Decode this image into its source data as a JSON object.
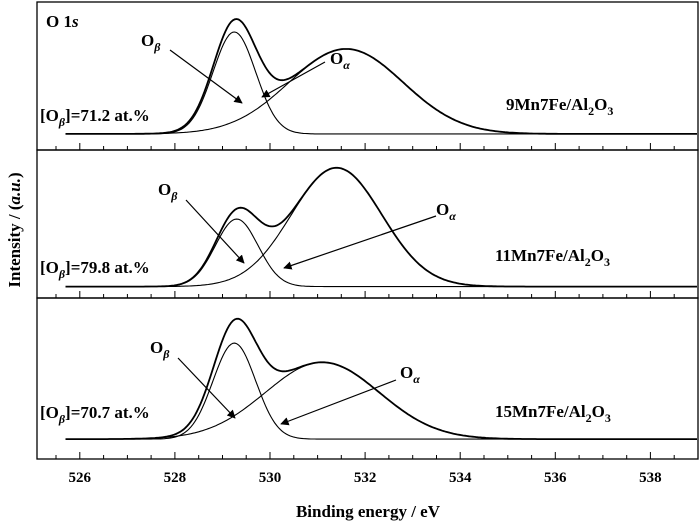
{
  "chart_data": {
    "type": "line",
    "xlabel": "Binding energy / eV",
    "ylabel": "Intensity / (a.u.)",
    "xlim": [
      525.1,
      539.0
    ],
    "xticks": [
      526,
      528,
      530,
      532,
      534,
      536,
      538
    ],
    "panel_label": "O 1s",
    "legend_entries": [
      "Oβ",
      "Oα"
    ],
    "panels": [
      {
        "sample": "9Mn7Fe/Al2O3",
        "concentration": "[Oβ]=71.2 at.%",
        "baseline": 0.03,
        "peaks": {
          "O_beta": {
            "center": 529.25,
            "sigma": 0.45,
            "height": 0.6
          },
          "O_alpha": {
            "center": 531.6,
            "sigma": 1.2,
            "height": 0.5
          }
        },
        "series": [
          {
            "name": "Oβ",
            "x": [
              527.5,
              528.5,
              528.9,
              529.25,
              529.6,
              530.0,
              531.0
            ],
            "y": [
              0.03,
              0.18,
              0.5,
              0.63,
              0.5,
              0.2,
              0.03
            ]
          },
          {
            "name": "Oα",
            "x": [
              528.0,
              529.5,
              530.5,
              531.6,
              532.5,
              533.5,
              535.0
            ],
            "y": [
              0.05,
              0.21,
              0.4,
              0.53,
              0.44,
              0.18,
              0.04
            ]
          }
        ]
      },
      {
        "sample": "11Mn7Fe/Al2O3",
        "concentration": "[Oβ]=79.8 at.%",
        "baseline": 0.03,
        "peaks": {
          "O_beta": {
            "center": 529.3,
            "sigma": 0.45,
            "height": 0.5
          },
          "O_alpha": {
            "center": 531.4,
            "sigma": 0.95,
            "height": 0.88
          }
        },
        "series": [
          {
            "name": "Oβ",
            "x": [
              527.5,
              528.5,
              528.9,
              529.3,
              529.7,
              530.1,
              531.0
            ],
            "y": [
              0.03,
              0.15,
              0.4,
              0.53,
              0.4,
              0.16,
              0.03
            ]
          },
          {
            "name": "Oα",
            "x": [
              528.5,
              529.5,
              530.5,
              531.4,
              532.3,
              533.2,
              534.5
            ],
            "y": [
              0.04,
              0.17,
              0.55,
              0.91,
              0.62,
              0.19,
              0.04
            ]
          }
        ]
      },
      {
        "sample": "15Mn7Fe/Al2O3",
        "concentration": "[Oβ]=70.7 at.%",
        "baseline": 0.03,
        "peaks": {
          "O_beta": {
            "center": 529.25,
            "sigma": 0.45,
            "height": 0.6
          },
          "O_alpha": {
            "center": 531.1,
            "sigma": 1.2,
            "height": 0.48
          }
        },
        "series": [
          {
            "name": "Oβ",
            "x": [
              527.5,
              528.5,
              528.9,
              529.25,
              529.6,
              530.0,
              531.0
            ],
            "y": [
              0.03,
              0.18,
              0.5,
              0.63,
              0.5,
              0.2,
              0.03
            ]
          },
          {
            "name": "Oα",
            "x": [
              527.8,
              529.0,
              530.0,
              531.1,
              532.1,
              533.1,
              534.5
            ],
            "y": [
              0.04,
              0.18,
              0.34,
              0.51,
              0.36,
              0.14,
              0.04
            ]
          }
        ]
      }
    ]
  }
}
